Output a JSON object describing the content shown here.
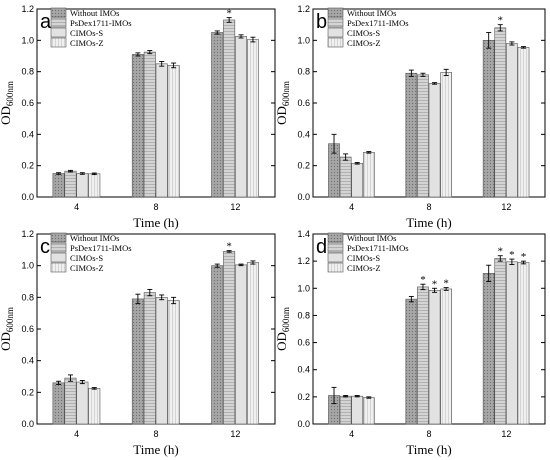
{
  "chart_data": [
    {
      "panel": "a",
      "type": "bar",
      "categories": [
        "4",
        "8",
        "12"
      ],
      "series": [
        {
          "name": "Without IMOs",
          "values": [
            0.15,
            0.91,
            1.05
          ],
          "errors": [
            0.005,
            0.01,
            0.01
          ]
        },
        {
          "name": "PsDex1711-IMOs",
          "values": [
            0.165,
            0.925,
            1.13
          ],
          "errors": [
            0.005,
            0.01,
            0.015
          ]
        },
        {
          "name": "CIMOs-S",
          "values": [
            0.15,
            0.85,
            1.025
          ],
          "errors": [
            0.005,
            0.015,
            0.01
          ]
        },
        {
          "name": "CIMOs-Z",
          "values": [
            0.148,
            0.84,
            1.005
          ],
          "errors": [
            0.005,
            0.015,
            0.015
          ]
        }
      ],
      "stars": [
        {
          "category": "12",
          "series": 1
        }
      ],
      "xlabel": "Time (h)",
      "ylabel": "OD",
      "ylabel_sub": "600nm",
      "ylim": [
        0,
        1.2
      ],
      "yticks": [
        "0.0",
        "0.2",
        "0.4",
        "0.6",
        "0.8",
        "1.0",
        "1.2"
      ],
      "ytick_values": [
        0,
        0.2,
        0.4,
        0.6,
        0.8,
        1.0,
        1.2
      ],
      "legend": "top-left"
    },
    {
      "panel": "b",
      "type": "bar",
      "categories": [
        "4",
        "8",
        "12"
      ],
      "series": [
        {
          "name": "Without IMOs",
          "values": [
            0.34,
            0.79,
            1.0
          ],
          "errors": [
            0.06,
            0.02,
            0.05
          ]
        },
        {
          "name": "PsDex1711-IMOs",
          "values": [
            0.255,
            0.78,
            1.08
          ],
          "errors": [
            0.02,
            0.01,
            0.02
          ]
        },
        {
          "name": "CIMOs-S",
          "values": [
            0.215,
            0.725,
            0.98
          ],
          "errors": [
            0.005,
            0.005,
            0.01
          ]
        },
        {
          "name": "CIMOs-Z",
          "values": [
            0.285,
            0.795,
            0.955
          ],
          "errors": [
            0.005,
            0.02,
            0.005
          ]
        }
      ],
      "stars": [
        {
          "category": "12",
          "series": 1
        }
      ],
      "xlabel": "Time (h)",
      "ylabel": "OD",
      "ylabel_sub": "600nm",
      "ylim": [
        0,
        1.2
      ],
      "yticks": [
        "0.0",
        "0.2",
        "0.4",
        "0.6",
        "0.8",
        "1.0",
        "1.2"
      ],
      "ytick_values": [
        0,
        0.2,
        0.4,
        0.6,
        0.8,
        1.0,
        1.2
      ],
      "legend": "top-left"
    },
    {
      "panel": "c",
      "type": "bar",
      "categories": [
        "4",
        "8",
        "12"
      ],
      "series": [
        {
          "name": "Without IMOs",
          "values": [
            0.26,
            0.79,
            1.0
          ],
          "errors": [
            0.01,
            0.03,
            0.01
          ]
        },
        {
          "name": "PsDex1711-IMOs",
          "values": [
            0.29,
            0.83,
            1.09
          ],
          "errors": [
            0.02,
            0.02,
            0.005
          ]
        },
        {
          "name": "CIMOs-S",
          "values": [
            0.265,
            0.8,
            1.005
          ],
          "errors": [
            0.01,
            0.015,
            0.005
          ]
        },
        {
          "name": "CIMOs-Z",
          "values": [
            0.225,
            0.78,
            1.02
          ],
          "errors": [
            0.005,
            0.02,
            0.01
          ]
        }
      ],
      "stars": [
        {
          "category": "12",
          "series": 1
        }
      ],
      "xlabel": "Time (h)",
      "ylabel": "OD",
      "ylabel_sub": "600nm",
      "ylim": [
        0,
        1.2
      ],
      "yticks": [
        "0.0",
        "0.2",
        "0.4",
        "0.6",
        "0.8",
        "1.0",
        "1.2"
      ],
      "ytick_values": [
        0,
        0.2,
        0.4,
        0.6,
        0.8,
        1.0,
        1.2
      ],
      "legend": "top-left"
    },
    {
      "panel": "d",
      "type": "bar",
      "categories": [
        "4",
        "8",
        "12"
      ],
      "series": [
        {
          "name": "Without IMOs",
          "values": [
            0.21,
            0.92,
            1.11
          ],
          "errors": [
            0.06,
            0.02,
            0.06
          ]
        },
        {
          "name": "PsDex1711-IMOs",
          "values": [
            0.205,
            1.01,
            1.22
          ],
          "errors": [
            0.005,
            0.02,
            0.02
          ]
        },
        {
          "name": "CIMOs-S",
          "values": [
            0.205,
            0.985,
            1.195
          ],
          "errors": [
            0.005,
            0.015,
            0.02
          ]
        },
        {
          "name": "CIMOs-Z",
          "values": [
            0.195,
            0.995,
            1.19
          ],
          "errors": [
            0.005,
            0.01,
            0.01
          ]
        }
      ],
      "stars": [
        {
          "category": "8",
          "series": 1
        },
        {
          "category": "8",
          "series": 2
        },
        {
          "category": "8",
          "series": 3
        },
        {
          "category": "12",
          "series": 1
        },
        {
          "category": "12",
          "series": 2
        },
        {
          "category": "12",
          "series": 3
        }
      ],
      "xlabel": "Time (h)",
      "ylabel": "OD",
      "ylabel_sub": "600nm",
      "ylim": [
        0,
        1.4
      ],
      "yticks": [
        "0.0",
        "0.2",
        "0.4",
        "0.6",
        "0.8",
        "1.0",
        "1.2",
        "1.4"
      ],
      "ytick_values": [
        0,
        0.2,
        0.4,
        0.6,
        0.8,
        1.0,
        1.2,
        1.4
      ],
      "legend": "top-left"
    }
  ],
  "star_symbol": "*",
  "series_fills": [
    "#a9a9a9",
    "#d4d4d4",
    "#e3e3e3",
    "#efefef"
  ],
  "series_patterns": [
    "dots",
    "hlines",
    "none",
    "vlines"
  ]
}
